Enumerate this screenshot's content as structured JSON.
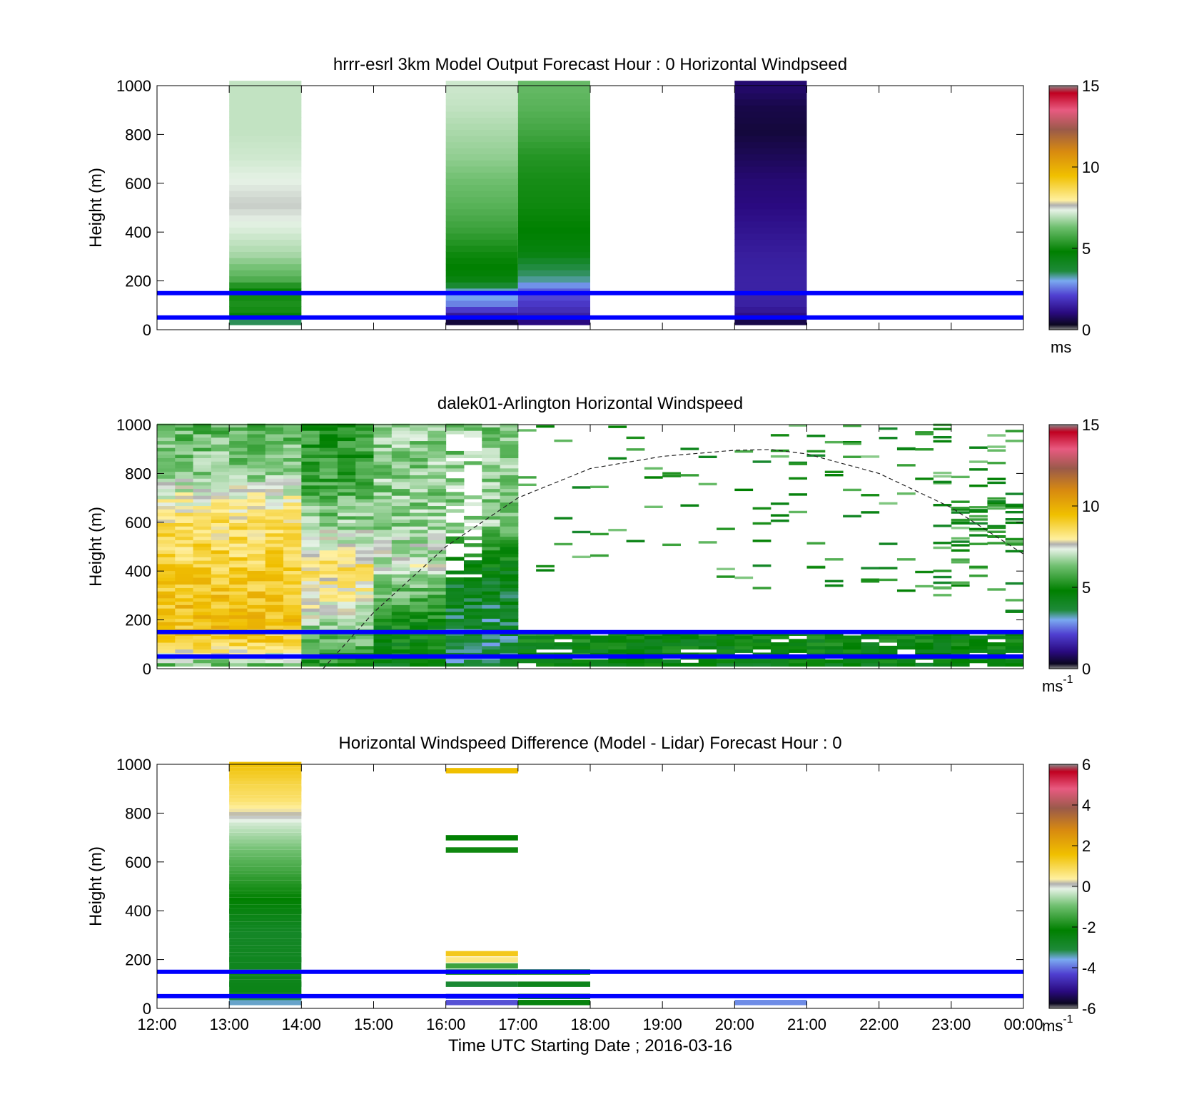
{
  "chart_data": [
    {
      "type": "heatmap",
      "title": "hrrr-esrl 3km Model Output   Forecast Hour : 0 Horizontal Windpseed",
      "xlabel": "",
      "ylabel": "Height (m)",
      "ylim": [
        0,
        1000
      ],
      "yticks": [
        "0",
        "200",
        "400",
        "600",
        "800",
        "1000"
      ],
      "xticks": [
        "12:00",
        "13:00",
        "14:00",
        "15:00",
        "16:00",
        "17:00",
        "18:00",
        "19:00",
        "20:00",
        "21:00",
        "22:00",
        "23:00",
        "00:00"
      ],
      "show_xtick_labels": false,
      "colorbar": {
        "range": [
          0,
          15
        ],
        "ticks": [
          "0",
          "5",
          "10",
          "15"
        ],
        "unit": "ms",
        "unit_sup": ""
      },
      "reference_lines_m": [
        150,
        50
      ],
      "reference_line_color": "#0000ff",
      "columns": [
        {
          "hour": 13,
          "height_values_m_to_speed": [
            [
              25,
              3.5
            ],
            [
              50,
              5
            ],
            [
              100,
              5.2
            ],
            [
              150,
              4.8
            ],
            [
              200,
              6
            ],
            [
              250,
              6.4
            ],
            [
              300,
              6.8
            ],
            [
              400,
              7.2
            ],
            [
              500,
              7.5
            ],
            [
              600,
              7.3
            ],
            [
              700,
              7.1
            ],
            [
              800,
              7.0
            ],
            [
              900,
              7.0
            ],
            [
              1000,
              7.0
            ]
          ]
        },
        {
          "hour": 16,
          "height_values_m_to_speed": [
            [
              25,
              0.5
            ],
            [
              50,
              1.5
            ],
            [
              100,
              2.8
            ],
            [
              150,
              3.2
            ],
            [
              200,
              4.6
            ],
            [
              250,
              4.8
            ],
            [
              300,
              5.0
            ],
            [
              400,
              5.6
            ],
            [
              500,
              6.0
            ],
            [
              600,
              6.3
            ],
            [
              700,
              6.6
            ],
            [
              800,
              6.8
            ],
            [
              900,
              7.0
            ],
            [
              1000,
              7.1
            ]
          ]
        },
        {
          "hour": 17,
          "height_values_m_to_speed": [
            [
              25,
              1.0
            ],
            [
              50,
              1.6
            ],
            [
              100,
              2.0
            ],
            [
              150,
              2.4
            ],
            [
              200,
              3.4
            ],
            [
              250,
              3.6
            ],
            [
              300,
              4.5
            ],
            [
              400,
              4.8
            ],
            [
              500,
              5.0
            ],
            [
              600,
              5.1
            ],
            [
              700,
              5.3
            ],
            [
              800,
              5.7
            ],
            [
              900,
              6.0
            ],
            [
              1000,
              6.2
            ]
          ]
        },
        {
          "hour": 20,
          "height_values_m_to_speed": [
            [
              25,
              0.6
            ],
            [
              50,
              1.2
            ],
            [
              100,
              1.5
            ],
            [
              200,
              1.5
            ],
            [
              300,
              1.4
            ],
            [
              400,
              1.2
            ],
            [
              500,
              1.0
            ],
            [
              600,
              0.9
            ],
            [
              700,
              0.7
            ],
            [
              800,
              0.5
            ],
            [
              900,
              0.6
            ],
            [
              1000,
              0.9
            ]
          ]
        }
      ]
    },
    {
      "type": "heatmap",
      "title": "dalek01-Arlington  Horizontal Windspeed",
      "xlabel": "",
      "ylabel": "Height (m)",
      "ylim": [
        0,
        1000
      ],
      "yticks": [
        "0",
        "200",
        "400",
        "600",
        "800",
        "1000"
      ],
      "xticks": [
        "12:00",
        "13:00",
        "14:00",
        "15:00",
        "16:00",
        "17:00",
        "18:00",
        "19:00",
        "20:00",
        "21:00",
        "22:00",
        "23:00",
        "00:00"
      ],
      "show_xtick_labels": false,
      "colorbar": {
        "range": [
          0,
          15
        ],
        "ticks": [
          "0",
          "5",
          "10",
          "15"
        ],
        "unit": "ms",
        "unit_sup": "-1"
      },
      "reference_lines_m": [
        150,
        50
      ],
      "reference_line_color": "#0000ff",
      "boundary_layer_curve_hours_m": [
        [
          14.3,
          0
        ],
        [
          15,
          230
        ],
        [
          16,
          500
        ],
        [
          17,
          700
        ],
        [
          18,
          820
        ],
        [
          19,
          870
        ],
        [
          20,
          895
        ],
        [
          20.5,
          898
        ],
        [
          21,
          880
        ],
        [
          22,
          800
        ],
        [
          23,
          660
        ],
        [
          24,
          470
        ]
      ],
      "scan_zones": [
        {
          "from_hour": 12,
          "to_hour": 14,
          "profile": [
            [
              0,
              6
            ],
            [
              100,
              9
            ],
            [
              200,
              9.5
            ],
            [
              400,
              9
            ],
            [
              600,
              8.5
            ],
            [
              700,
              7.5
            ],
            [
              800,
              6.5
            ],
            [
              1000,
              6
            ]
          ]
        },
        {
          "from_hour": 14,
          "to_hour": 15,
          "profile": [
            [
              0,
              5
            ],
            [
              100,
              6
            ],
            [
              200,
              7
            ],
            [
              400,
              8.5
            ],
            [
              600,
              6.5
            ],
            [
              800,
              5.6
            ],
            [
              1000,
              5.4
            ]
          ]
        },
        {
          "from_hour": 15,
          "to_hour": 16,
          "profile": [
            [
              0,
              4.5
            ],
            [
              200,
              5
            ],
            [
              400,
              7.3
            ],
            [
              600,
              6.5
            ],
            [
              800,
              6.5
            ],
            [
              1000,
              6.6
            ]
          ]
        },
        {
          "from_hour": 16,
          "to_hour": 17,
          "profile": [
            [
              0,
              3.5
            ],
            [
              200,
              3.8
            ],
            [
              400,
              4.5
            ],
            [
              600,
              6.5
            ],
            [
              800,
              6.5
            ],
            [
              1000,
              6.4
            ]
          ]
        },
        {
          "from_hour": 17,
          "to_hour": 24,
          "profile": [
            [
              0,
              4.5
            ],
            [
              150,
              4.8
            ]
          ]
        }
      ]
    },
    {
      "type": "heatmap",
      "title": "Horizontal Windspeed Difference (Model - Lidar) Forecast Hour : 0",
      "xlabel": "Time UTC  Starting Date ; 2016-03-16",
      "ylabel": "Height (m)",
      "ylim": [
        0,
        1000
      ],
      "yticks": [
        "0",
        "200",
        "400",
        "600",
        "800",
        "1000"
      ],
      "xticks": [
        "12:00",
        "13:00",
        "14:00",
        "15:00",
        "16:00",
        "17:00",
        "18:00",
        "19:00",
        "20:00",
        "21:00",
        "22:00",
        "23:00",
        "00:00"
      ],
      "show_xtick_labels": true,
      "colorbar": {
        "range": [
          -6,
          6
        ],
        "ticks": [
          "-6",
          "-4",
          "-2",
          "0",
          "2",
          "4",
          "6"
        ],
        "unit": "ms",
        "unit_sup": "-1"
      },
      "reference_lines_m": [
        150,
        50
      ],
      "reference_line_color": "#0000ff",
      "columns": [
        {
          "hour": 13,
          "height_values_m_to_diff": [
            [
              25,
              -3.5
            ],
            [
              50,
              -2.5
            ],
            [
              100,
              -2.6
            ],
            [
              200,
              -2.7
            ],
            [
              300,
              -2.8
            ],
            [
              400,
              -2.4
            ],
            [
              500,
              -1.8
            ],
            [
              600,
              -1.2
            ],
            [
              700,
              -0.6
            ],
            [
              750,
              -0.3
            ],
            [
              800,
              0.3
            ],
            [
              850,
              0.8
            ],
            [
              900,
              1.0
            ],
            [
              950,
              1.3
            ],
            [
              1000,
              1.6
            ]
          ]
        },
        {
          "hour": 16,
          "height_values_m_to_diff": [
            [
              25,
              -4.2
            ],
            [
              50,
              -3.8
            ],
            [
              100,
              -3.0
            ],
            [
              150,
              -2.4
            ],
            [
              175,
              -1.5
            ],
            [
              200,
              0.6
            ],
            [
              225,
              1.4
            ],
            [
              650,
              -2.0
            ],
            [
              700,
              -2.2
            ],
            [
              975,
              1.6
            ]
          ]
        },
        {
          "hour": 17,
          "height_values_m_to_diff": [
            [
              25,
              -2.4
            ],
            [
              50,
              -2.6
            ],
            [
              100,
              -2.6
            ],
            [
              150,
              -2.5
            ]
          ]
        },
        {
          "hour": 20,
          "height_values_m_to_diff": [
            [
              25,
              -3.8
            ]
          ]
        }
      ]
    }
  ]
}
